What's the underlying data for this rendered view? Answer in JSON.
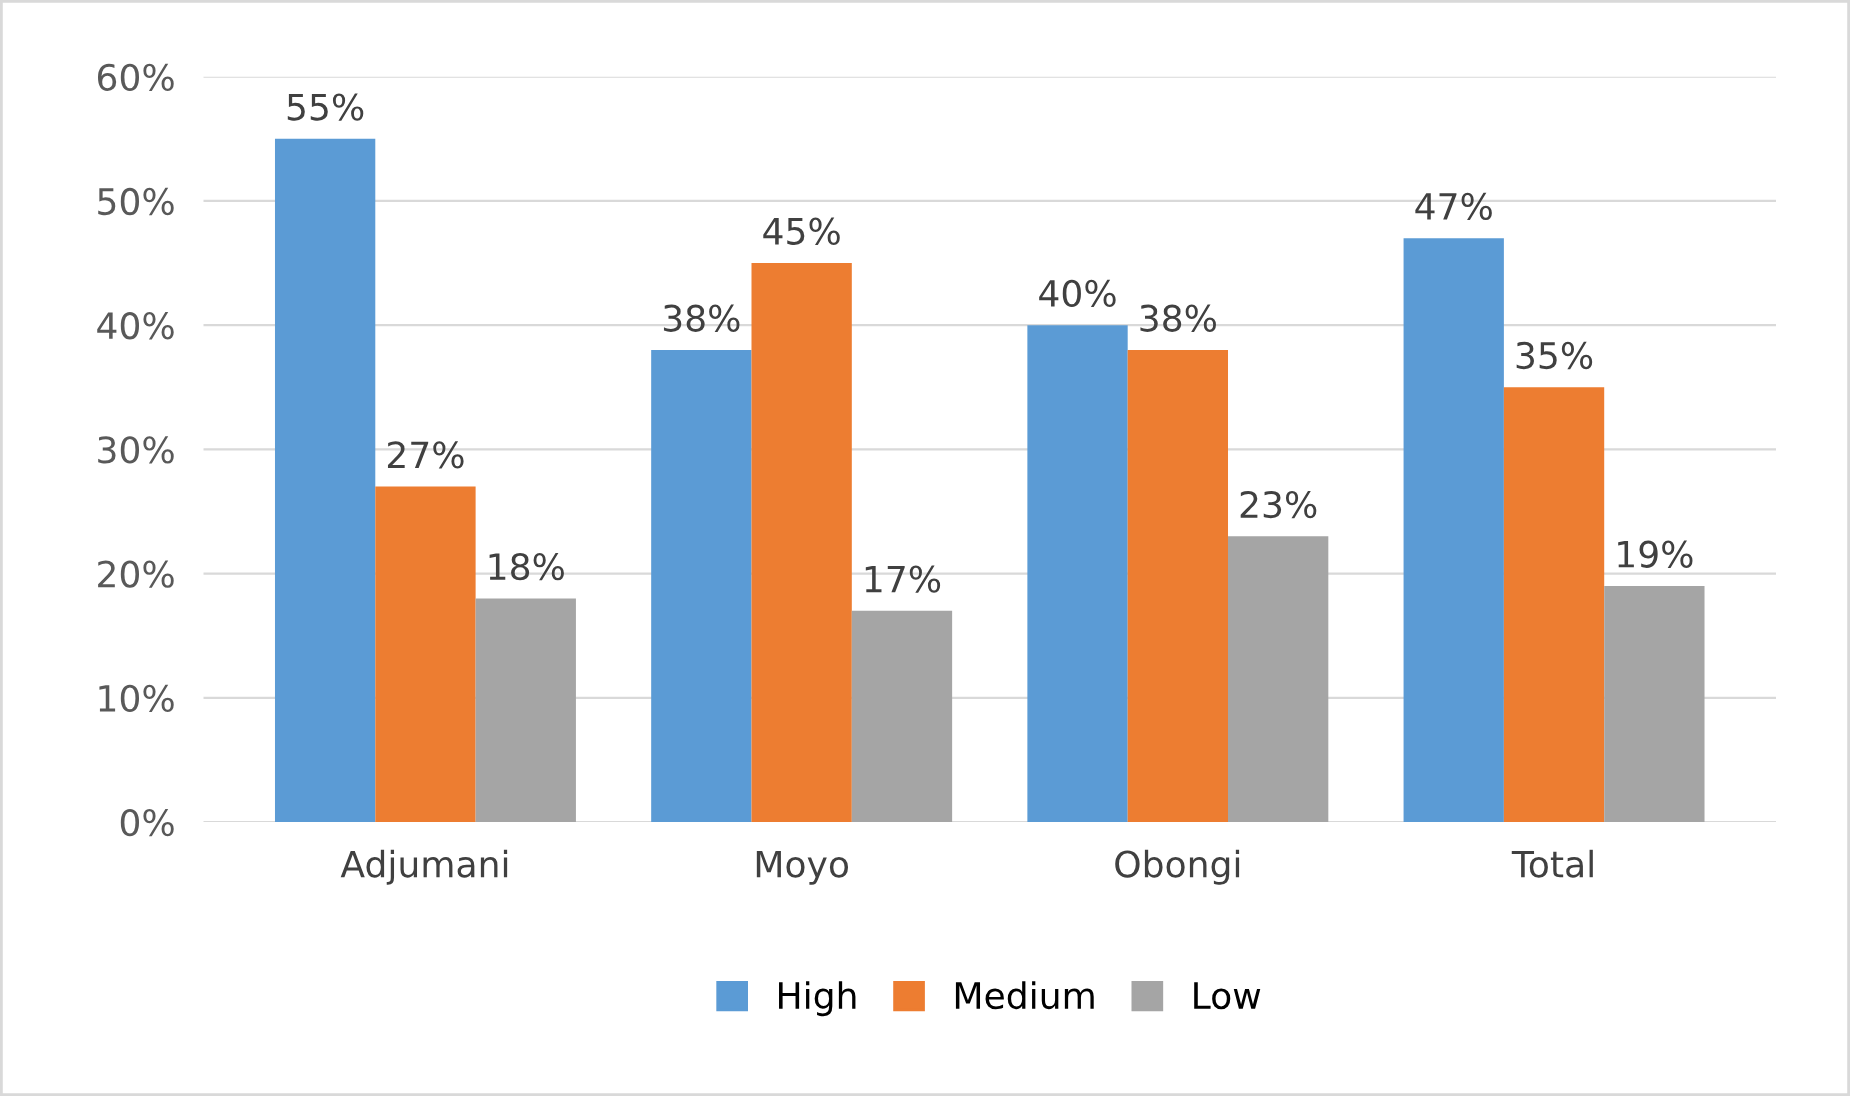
{
  "chart_data": {
    "type": "bar",
    "categories": [
      "Adjumani",
      "Moyo",
      "Obongi",
      "Total"
    ],
    "series": [
      {
        "name": "High",
        "color": "#5b9bd5",
        "values": [
          55,
          38,
          40,
          47
        ],
        "value_labels": [
          "55%",
          "38%",
          "40%",
          "47%"
        ]
      },
      {
        "name": "Medium",
        "color": "#ed7d31",
        "values": [
          27,
          45,
          38,
          35
        ],
        "value_labels": [
          "27%",
          "45%",
          "38%",
          "35%"
        ]
      },
      {
        "name": "Low",
        "color": "#a5a5a5",
        "values": [
          18,
          17,
          23,
          19
        ],
        "value_labels": [
          "18%",
          "17%",
          "23%",
          "19%"
        ]
      }
    ],
    "ylim": [
      0,
      60
    ],
    "yticks": [
      {
        "value": 0,
        "label": "0%"
      },
      {
        "value": 10,
        "label": "10%"
      },
      {
        "value": 20,
        "label": "20%"
      },
      {
        "value": 30,
        "label": "30%"
      },
      {
        "value": 40,
        "label": "40%"
      },
      {
        "value": 50,
        "label": "50%"
      },
      {
        "value": 60,
        "label": "60%"
      }
    ],
    "grid": "y",
    "legend": "bottom"
  }
}
